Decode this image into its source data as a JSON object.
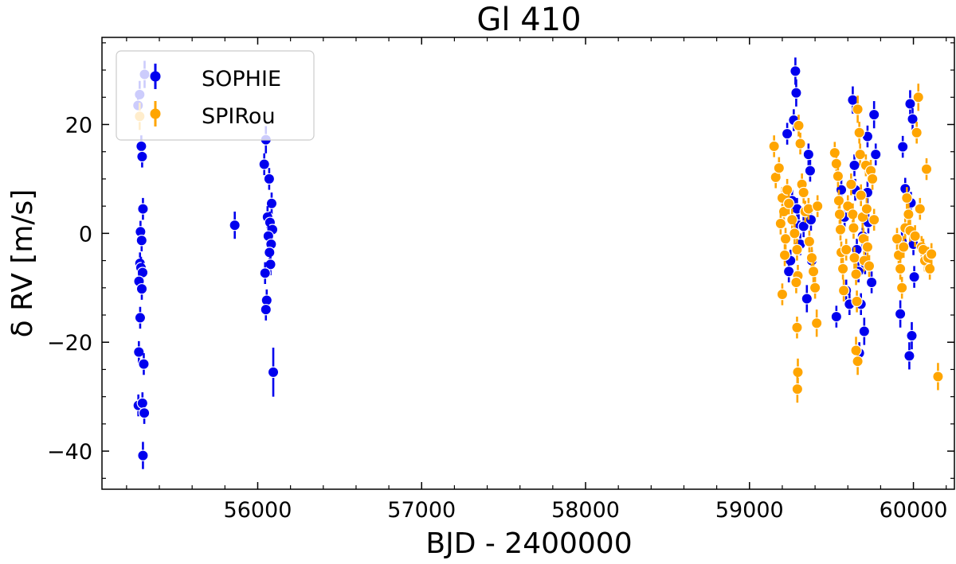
{
  "chart_data": {
    "type": "scatter",
    "title": "Gl 410",
    "xlabel": "BJD - 2400000",
    "ylabel": "δ RV [m/s]",
    "xlim": [
      55050,
      60250
    ],
    "ylim": [
      -47,
      36
    ],
    "xticks": [
      56000,
      57000,
      58000,
      59000,
      60000
    ],
    "yticks": [
      -40,
      -20,
      0,
      20
    ],
    "xtick_labels": [
      "56000",
      "57000",
      "58000",
      "59000",
      "60000"
    ],
    "ytick_labels": [
      "−40",
      "−20",
      "0",
      "20"
    ],
    "grid": false,
    "legend": "top-left",
    "series": [
      {
        "name": "SOPHIE",
        "color": "#0000ee",
        "points": [
          [
            55310,
            29.2,
            2.5
          ],
          [
            55280,
            25.5,
            2.5
          ],
          [
            55270,
            23.5,
            2.5
          ],
          [
            55290,
            16,
            2
          ],
          [
            55295,
            14.1,
            2
          ],
          [
            55300,
            4.5,
            2
          ],
          [
            55285,
            0.3,
            2
          ],
          [
            55292,
            -1.3,
            2
          ],
          [
            55282,
            -5.5,
            2
          ],
          [
            55288,
            -6.3,
            2
          ],
          [
            55298,
            -7.2,
            2
          ],
          [
            55276,
            -8.8,
            2
          ],
          [
            55293,
            -10.2,
            2
          ],
          [
            55283,
            -15.5,
            2
          ],
          [
            55275,
            -21.8,
            2
          ],
          [
            55305,
            -24,
            2
          ],
          [
            55272,
            -31.6,
            2
          ],
          [
            55297,
            -31.2,
            2
          ],
          [
            55308,
            -33,
            2
          ],
          [
            55300,
            -40.8,
            2.5
          ],
          [
            55860,
            1.5,
            2.5
          ],
          [
            56050,
            17.2,
            2.5
          ],
          [
            56040,
            12.7,
            2
          ],
          [
            56070,
            10,
            2
          ],
          [
            56085,
            5.5,
            2
          ],
          [
            56060,
            3,
            2
          ],
          [
            56075,
            2,
            2
          ],
          [
            56090,
            0.7,
            2
          ],
          [
            56065,
            -0.5,
            2
          ],
          [
            56082,
            -2,
            2
          ],
          [
            56072,
            -3.5,
            2
          ],
          [
            56078,
            -5.7,
            2
          ],
          [
            56045,
            -7.3,
            2
          ],
          [
            56055,
            -12.3,
            2
          ],
          [
            56050,
            -14,
            2
          ],
          [
            56095,
            -25.5,
            4.5
          ],
          [
            59230,
            18.3,
            2
          ],
          [
            59280,
            29.8,
            2.5
          ],
          [
            59285,
            25.8,
            2.5
          ],
          [
            59270,
            20.8,
            2
          ],
          [
            59260,
            6,
            2
          ],
          [
            59290,
            4.5,
            2
          ],
          [
            59300,
            1.5,
            2
          ],
          [
            59330,
            1.3,
            2
          ],
          [
            59310,
            -2,
            2
          ],
          [
            59250,
            -5,
            2
          ],
          [
            59240,
            -7,
            2
          ],
          [
            59350,
            -12,
            2.5
          ],
          [
            59360,
            14.5,
            2
          ],
          [
            59380,
            -5,
            2
          ],
          [
            59370,
            11.5,
            2
          ],
          [
            59375,
            2.5,
            2
          ],
          [
            59530,
            -15.3,
            2
          ],
          [
            59560,
            8,
            2
          ],
          [
            59580,
            3,
            2
          ],
          [
            59590,
            -10.5,
            2
          ],
          [
            59610,
            -13,
            2
          ],
          [
            59630,
            24.5,
            2.5
          ],
          [
            59640,
            12.5,
            2
          ],
          [
            59645,
            8,
            2
          ],
          [
            59655,
            -3,
            2
          ],
          [
            59665,
            -7,
            2
          ],
          [
            59670,
            -22,
            2
          ],
          [
            59680,
            -13,
            2
          ],
          [
            59700,
            -18,
            2.5
          ],
          [
            59705,
            -5.5,
            2
          ],
          [
            59720,
            7.5,
            2
          ],
          [
            59725,
            2,
            2
          ],
          [
            59745,
            -9,
            2
          ],
          [
            59760,
            21.8,
            2.5
          ],
          [
            59770,
            14.5,
            2
          ],
          [
            59720,
            17.8,
            2
          ],
          [
            59690,
            -0.5,
            2
          ],
          [
            59935,
            15.9,
            2
          ],
          [
            59920,
            -14.8,
            2.5
          ],
          [
            59950,
            8.2,
            2
          ],
          [
            59980,
            23.8,
            2.5
          ],
          [
            59995,
            21,
            2
          ],
          [
            59985,
            5.6,
            2
          ],
          [
            60000,
            -2,
            2
          ],
          [
            59975,
            -22.5,
            2.5
          ],
          [
            59990,
            -18.8,
            2.5
          ],
          [
            60005,
            -8,
            2
          ],
          [
            59930,
            -1.5,
            2
          ]
        ]
      },
      {
        "name": "SPIRou",
        "color": "#ffa500",
        "points": [
          [
            55280,
            21.5,
            2.5
          ],
          [
            59150,
            16,
            2
          ],
          [
            59160,
            10.3,
            2
          ],
          [
            59180,
            12,
            2
          ],
          [
            59200,
            6.5,
            2
          ],
          [
            59210,
            4,
            2
          ],
          [
            59190,
            1.8,
            2
          ],
          [
            59220,
            -1,
            2
          ],
          [
            59215,
            -4,
            2
          ],
          [
            59200,
            -11.2,
            2
          ],
          [
            59230,
            8,
            2
          ],
          [
            59240,
            5.5,
            2
          ],
          [
            59260,
            2.5,
            2
          ],
          [
            59275,
            0,
            2
          ],
          [
            59290,
            -3,
            2
          ],
          [
            59300,
            19.8,
            2
          ],
          [
            59310,
            16.5,
            2
          ],
          [
            59320,
            9,
            2
          ],
          [
            59330,
            7.5,
            2
          ],
          [
            59340,
            4,
            2
          ],
          [
            59295,
            -7.8,
            2
          ],
          [
            59285,
            -9,
            2
          ],
          [
            59290,
            -17.3,
            2
          ],
          [
            59295,
            -25.5,
            2.5
          ],
          [
            59292,
            -28.6,
            2.5
          ],
          [
            59360,
            4.5,
            2
          ],
          [
            59365,
            -1.5,
            2
          ],
          [
            59380,
            -4.5,
            2
          ],
          [
            59390,
            -7,
            2
          ],
          [
            59400,
            -10,
            2
          ],
          [
            59410,
            -16.5,
            2.5
          ],
          [
            59415,
            5,
            2
          ],
          [
            59520,
            14.8,
            2
          ],
          [
            59530,
            12.8,
            2
          ],
          [
            59540,
            10.5,
            2
          ],
          [
            59545,
            6,
            2
          ],
          [
            59550,
            3.5,
            2
          ],
          [
            59555,
            0.7,
            2
          ],
          [
            59560,
            -3.5,
            2
          ],
          [
            59570,
            -6.5,
            2
          ],
          [
            59575,
            -10.5,
            2
          ],
          [
            59590,
            -3,
            2
          ],
          [
            59600,
            5,
            2
          ],
          [
            59620,
            9,
            2
          ],
          [
            59630,
            3.5,
            2
          ],
          [
            59635,
            1,
            2
          ],
          [
            59640,
            -4.5,
            2
          ],
          [
            59650,
            -7.5,
            2
          ],
          [
            59655,
            -12.5,
            2
          ],
          [
            59660,
            22.8,
            2.5
          ],
          [
            59670,
            18.5,
            2
          ],
          [
            59675,
            14.5,
            2
          ],
          [
            59680,
            7,
            2
          ],
          [
            59690,
            3,
            2
          ],
          [
            59695,
            -1,
            2
          ],
          [
            59700,
            -5,
            2
          ],
          [
            59650,
            -21.5,
            2.5
          ],
          [
            59660,
            -23.5,
            2.5
          ],
          [
            59710,
            12.5,
            2
          ],
          [
            59715,
            4.5,
            2
          ],
          [
            59720,
            -2.5,
            2
          ],
          [
            59730,
            -6,
            2
          ],
          [
            59740,
            11.5,
            2
          ],
          [
            59750,
            10,
            2
          ],
          [
            59760,
            2.5,
            2
          ],
          [
            59900,
            -1,
            2
          ],
          [
            59910,
            -4,
            2
          ],
          [
            59920,
            -6.5,
            2
          ],
          [
            59930,
            -10,
            2
          ],
          [
            59940,
            -2.5,
            2
          ],
          [
            59950,
            1,
            2
          ],
          [
            59960,
            6.5,
            2
          ],
          [
            59970,
            3.5,
            2
          ],
          [
            59980,
            0.5,
            2
          ],
          [
            60010,
            -0.5,
            2
          ],
          [
            60020,
            18.5,
            2
          ],
          [
            60030,
            25,
            2.5
          ],
          [
            60040,
            4.5,
            2
          ],
          [
            60050,
            -2.5,
            2
          ],
          [
            60060,
            -3,
            2
          ],
          [
            60070,
            -5,
            2
          ],
          [
            60080,
            11.8,
            2
          ],
          [
            60090,
            -4.5,
            2
          ],
          [
            60100,
            -6.5,
            2
          ],
          [
            60110,
            -3.8,
            2
          ],
          [
            60150,
            -26.3,
            2.5
          ]
        ]
      }
    ]
  }
}
